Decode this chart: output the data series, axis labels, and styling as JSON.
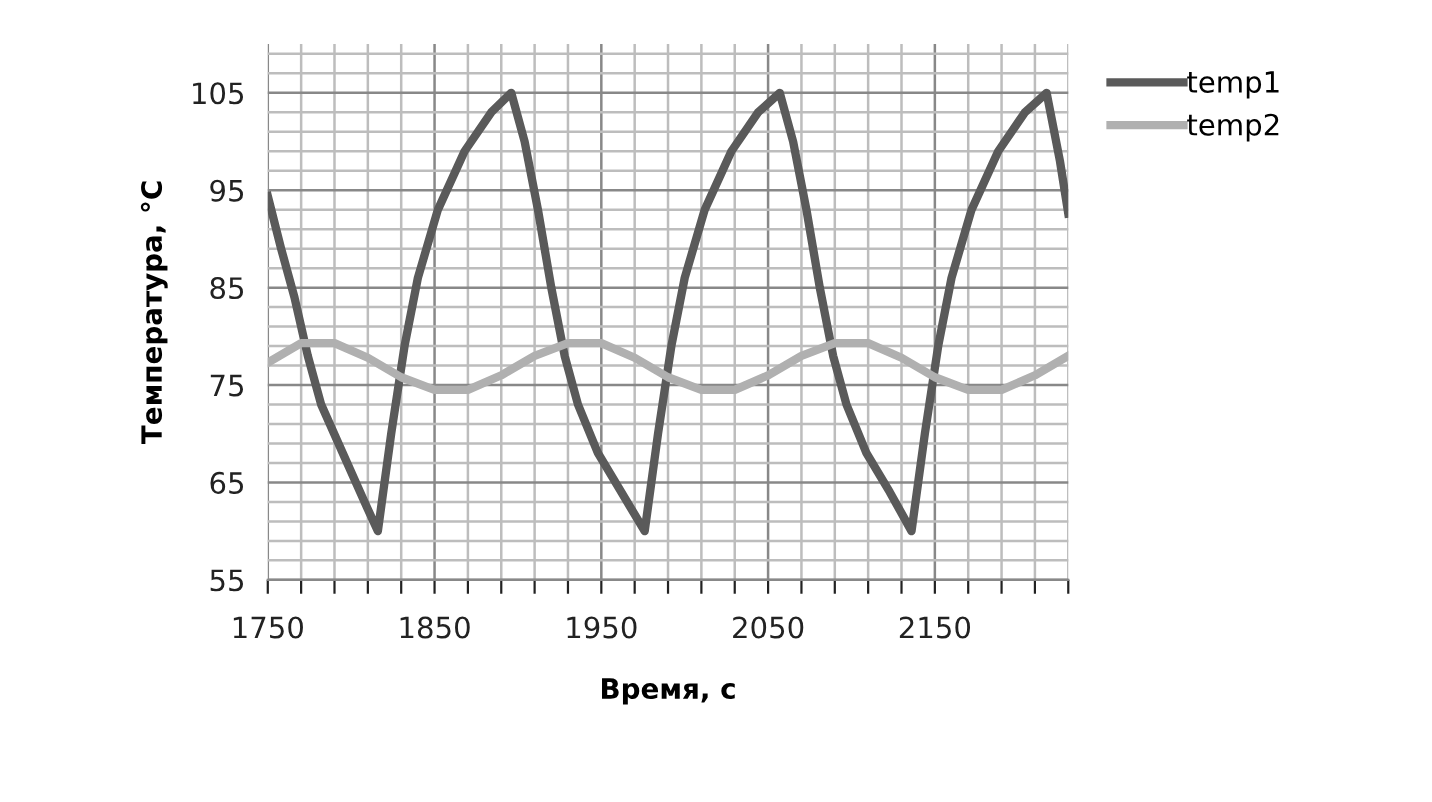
{
  "chart_data": {
    "type": "line",
    "xlabel": "Время, с",
    "ylabel": "Температура, °C",
    "xlim": [
      1750,
      2230
    ],
    "ylim": [
      55,
      110
    ],
    "xticks": [
      1750,
      {
        "value": 1770,
        "label": null
      },
      {
        "value": 1790,
        "label": null
      },
      {
        "value": 1810,
        "label": null
      },
      {
        "value": 1830,
        "label": null
      },
      1850,
      {
        "value": 1870,
        "label": null
      },
      {
        "value": 1890,
        "label": null
      },
      {
        "value": 1910,
        "label": null
      },
      {
        "value": 1930,
        "label": null
      },
      1950,
      {
        "value": 1970,
        "label": null
      },
      {
        "value": 1990,
        "label": null
      },
      {
        "value": 2010,
        "label": null
      },
      {
        "value": 2030,
        "label": null
      },
      2050,
      {
        "value": 2070,
        "label": null
      },
      {
        "value": 2090,
        "label": null
      },
      {
        "value": 2110,
        "label": null
      },
      {
        "value": 2130,
        "label": null
      },
      2150,
      {
        "value": 2170,
        "label": null
      },
      {
        "value": 2190,
        "label": null
      },
      {
        "value": 2210,
        "label": null
      },
      {
        "value": 2230,
        "label": null
      }
    ],
    "yticks": [
      55,
      {
        "value": 57,
        "label": null
      },
      {
        "value": 59,
        "label": null
      },
      {
        "value": 61,
        "label": null
      },
      {
        "value": 63,
        "label": null
      },
      65,
      {
        "value": 67,
        "label": null
      },
      {
        "value": 69,
        "label": null
      },
      {
        "value": 71,
        "label": null
      },
      {
        "value": 73,
        "label": null
      },
      75,
      {
        "value": 77,
        "label": null
      },
      {
        "value": 79,
        "label": null
      },
      {
        "value": 81,
        "label": null
      },
      {
        "value": 83,
        "label": null
      },
      85,
      {
        "value": 87,
        "label": null
      },
      {
        "value": 89,
        "label": null
      },
      {
        "value": 91,
        "label": null
      },
      {
        "value": 93,
        "label": null
      },
      95,
      {
        "value": 97,
        "label": null
      },
      {
        "value": 99,
        "label": null
      },
      {
        "value": 101,
        "label": null
      },
      {
        "value": 103,
        "label": null
      },
      105,
      {
        "value": 107,
        "label": null
      },
      {
        "value": 109,
        "label": null
      }
    ],
    "grid": true,
    "legend": "right",
    "marker": "none",
    "line_style": "solid",
    "series": [
      {
        "name": "temp1",
        "color": "#5a5a5a",
        "x": [
          1750,
          1758,
          1766,
          1774,
          1782,
          1795,
          1808,
          1816,
          1824,
          1832,
          1840,
          1852,
          1868,
          1884,
          1896,
          1904,
          1912,
          1920,
          1928,
          1936,
          1948,
          1962,
          1976,
          1984,
          1992,
          2000,
          2012,
          2028,
          2044,
          2057,
          2065,
          2073,
          2081,
          2089,
          2097,
          2109,
          2123,
          2136,
          2144,
          2152,
          2160,
          2172,
          2188,
          2204,
          2217,
          2225,
          2230
        ],
        "values": [
          94.4,
          89,
          84,
          78,
          73,
          68,
          63,
          60,
          70,
          79,
          86,
          93,
          99,
          103,
          105,
          100,
          93,
          85,
          78,
          73,
          68,
          64,
          60,
          70,
          79,
          86,
          93,
          99,
          103,
          105,
          100,
          93,
          85,
          78,
          73,
          68,
          64,
          60,
          70,
          79,
          86,
          93,
          99,
          103,
          105,
          98,
          92.6
        ]
      },
      {
        "name": "temp2",
        "color": "#b0b0b0",
        "x": [
          1750,
          1770,
          1790,
          1810,
          1830,
          1850,
          1870,
          1890,
          1910,
          1930,
          1950,
          1970,
          1990,
          2010,
          2030,
          2050,
          2070,
          2090,
          2110,
          2130,
          2150,
          2170,
          2190,
          2210,
          2230
        ],
        "values": [
          77.3,
          79.3,
          79.3,
          77.8,
          75.8,
          74.5,
          74.5,
          76.0,
          78.0,
          79.3,
          79.3,
          77.8,
          75.8,
          74.5,
          74.5,
          76.0,
          78.0,
          79.3,
          79.3,
          77.8,
          75.8,
          74.5,
          74.5,
          76.0,
          78.0
        ]
      }
    ]
  }
}
